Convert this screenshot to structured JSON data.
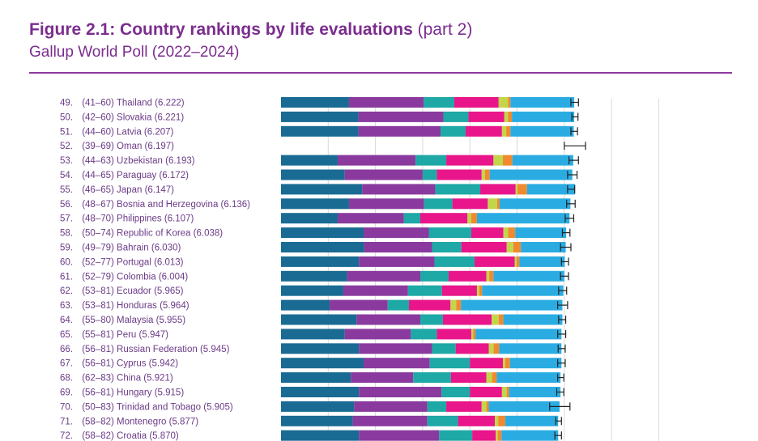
{
  "header": {
    "title": "Figure 2.1: Country rankings by life evaluations",
    "title_suffix": "(part 2)",
    "subtitle": "Gallup World Poll (2022–2024)"
  },
  "colors": {
    "title": "#7b2d8e",
    "rule": "#8e3a9e",
    "label": "#6b3b87",
    "segments": [
      "#1a6b93",
      "#8a3a9e",
      "#1ea8a6",
      "#e8168a",
      "#c3d64a",
      "#f08a2e",
      "#2aace2"
    ],
    "gridline": "#d8d8d8",
    "whisker": "#222222"
  },
  "chart_data": {
    "type": "bar",
    "orientation": "horizontal",
    "stacked": true,
    "xlim": [
      0,
      8.2
    ],
    "grid": true,
    "legend": "none",
    "rows": [
      {
        "rank": "49.",
        "range": "(41–60)",
        "country": "Thailand",
        "score": "(6.222)",
        "value": 6.222,
        "ci": [
          6.14,
          6.3
        ],
        "segments": [
          1.44,
          1.58,
          0.65,
          0.94,
          0.2,
          0.05,
          1.35
        ]
      },
      {
        "rank": "50.",
        "range": "(42–60)",
        "country": "Slovakia",
        "score": "(6.221)",
        "value": 6.221,
        "ci": [
          6.16,
          6.29
        ],
        "segments": [
          1.64,
          1.8,
          0.53,
          0.76,
          0.08,
          0.08,
          1.32
        ]
      },
      {
        "rank": "51.",
        "range": "(44–60)",
        "country": "Latvia",
        "score": "(6.207)",
        "value": 6.207,
        "ci": [
          6.14,
          6.28
        ],
        "segments": [
          1.64,
          1.74,
          0.53,
          0.77,
          0.09,
          0.09,
          1.34
        ]
      },
      {
        "rank": "52.",
        "range": "(39–69)",
        "country": "Oman",
        "score": "(6.197)",
        "value": 6.197,
        "ci": [
          6.0,
          6.45
        ],
        "segments": []
      },
      {
        "rank": "53.",
        "range": "(44–63)",
        "country": "Uzbekistan",
        "score": "(6.193)",
        "value": 6.193,
        "ci": [
          6.1,
          6.3
        ],
        "segments": [
          1.2,
          1.65,
          0.65,
          1.0,
          0.2,
          0.2,
          1.29
        ]
      },
      {
        "rank": "54.",
        "range": "(44–65)",
        "country": "Paraguay",
        "score": "(6.172)",
        "value": 6.172,
        "ci": [
          6.07,
          6.27
        ],
        "segments": [
          1.35,
          1.65,
          0.3,
          0.95,
          0.07,
          0.1,
          1.75
        ]
      },
      {
        "rank": "55.",
        "range": "(46–65)",
        "country": "Japan",
        "score": "(6.147)",
        "value": 6.147,
        "ci": [
          6.07,
          6.22
        ],
        "segments": [
          1.72,
          1.55,
          0.95,
          0.75,
          0.04,
          0.2,
          1.02
        ]
      },
      {
        "rank": "56.",
        "range": "(48–67)",
        "country": "Bosnia and Herzegovina",
        "score": "(6.136)",
        "value": 6.136,
        "ci": [
          6.05,
          6.23
        ],
        "segments": [
          1.44,
          1.59,
          0.6,
          0.75,
          0.2,
          0.05,
          1.5
        ]
      },
      {
        "rank": "57.",
        "range": "(48–70)",
        "country": "Philippines",
        "score": "(6.107)",
        "value": 6.107,
        "ci": [
          6.02,
          6.2
        ],
        "segments": [
          1.2,
          1.4,
          0.35,
          1.0,
          0.08,
          0.12,
          1.96
        ]
      },
      {
        "rank": "58.",
        "range": "(50–74)",
        "country": "Republic of Korea",
        "score": "(6.038)",
        "value": 6.038,
        "ci": [
          5.96,
          6.12
        ],
        "segments": [
          1.75,
          1.38,
          0.9,
          0.68,
          0.1,
          0.15,
          1.08
        ]
      },
      {
        "rank": "59.",
        "range": "(49–79)",
        "country": "Bahrain",
        "score": "(6.030)",
        "value": 6.03,
        "ci": [
          5.92,
          6.14
        ],
        "segments": [
          1.76,
          1.44,
          0.62,
          0.96,
          0.14,
          0.16,
          0.95
        ]
      },
      {
        "rank": "60.",
        "range": "(52–77)",
        "country": "Portugal",
        "score": "(6.013)",
        "value": 6.013,
        "ci": [
          5.94,
          6.09
        ],
        "segments": [
          1.65,
          1.6,
          0.85,
          0.85,
          0.04,
          0.06,
          0.96
        ]
      },
      {
        "rank": "61.",
        "range": "(52–79)",
        "country": "Colombia",
        "score": "(6.004)",
        "value": 6.004,
        "ci": [
          5.92,
          6.09
        ],
        "segments": [
          1.4,
          1.55,
          0.6,
          0.8,
          0.06,
          0.09,
          1.5
        ]
      },
      {
        "rank": "62.",
        "range": "(53–81)",
        "country": "Ecuador",
        "score": "(5.965)",
        "value": 5.965,
        "ci": [
          5.88,
          6.05
        ],
        "segments": [
          1.32,
          1.37,
          0.72,
          0.74,
          0.05,
          0.06,
          1.72
        ]
      },
      {
        "rank": "63.",
        "range": "(53–81)",
        "country": "Honduras",
        "score": "(5.964)",
        "value": 5.964,
        "ci": [
          5.86,
          6.07
        ],
        "segments": [
          1.03,
          1.23,
          0.45,
          0.88,
          0.12,
          0.1,
          2.15
        ]
      },
      {
        "rank": "64.",
        "range": "(55–80)",
        "country": "Malaysia",
        "score": "(5.955)",
        "value": 5.955,
        "ci": [
          5.88,
          6.03
        ],
        "segments": [
          1.6,
          1.35,
          0.48,
          1.03,
          0.15,
          0.1,
          1.25
        ]
      },
      {
        "rank": "65.",
        "range": "(55–81)",
        "country": "Peru",
        "score": "(5.947)",
        "value": 5.947,
        "ci": [
          5.86,
          6.03
        ],
        "segments": [
          1.35,
          1.4,
          0.55,
          0.73,
          0.04,
          0.05,
          1.82
        ]
      },
      {
        "rank": "66.",
        "range": "(56–81)",
        "country": "Russian Federation",
        "score": "(5.945)",
        "value": 5.945,
        "ci": [
          5.87,
          6.02
        ],
        "segments": [
          1.65,
          1.55,
          0.5,
          0.7,
          0.1,
          0.12,
          1.32
        ]
      },
      {
        "rank": "67.",
        "range": "(56–81)",
        "country": "Cyprus",
        "score": "(5.942)",
        "value": 5.942,
        "ci": [
          5.86,
          6.02
        ],
        "segments": [
          1.75,
          1.4,
          0.85,
          0.7,
          0.05,
          0.1,
          1.09
        ]
      },
      {
        "rank": "68.",
        "range": "(62–83)",
        "country": "China",
        "score": "(5.921)",
        "value": 5.921,
        "ci": [
          5.86,
          5.99
        ],
        "segments": [
          1.48,
          1.32,
          0.8,
          0.75,
          0.12,
          0.1,
          1.35
        ]
      },
      {
        "rank": "69.",
        "range": "(56–81)",
        "country": "Hungary",
        "score": "(5.915)",
        "value": 5.915,
        "ci": [
          5.84,
          5.99
        ],
        "segments": [
          1.65,
          1.75,
          0.6,
          0.68,
          0.1,
          0.05,
          1.09
        ]
      },
      {
        "rank": "70.",
        "range": "(50–83)",
        "country": "Trinidad and Tobago",
        "score": "(5.905)",
        "value": 5.905,
        "ci": [
          5.69,
          6.12
        ],
        "segments": [
          1.55,
          1.55,
          0.4,
          0.75,
          0.1,
          0.05,
          1.5
        ]
      },
      {
        "rank": "71.",
        "range": "(58–82)",
        "country": "Montenegro",
        "score": "(5.877)",
        "value": 5.877,
        "ci": [
          5.82,
          5.94
        ],
        "segments": [
          1.52,
          1.58,
          0.65,
          0.78,
          0.07,
          0.15,
          1.12
        ]
      },
      {
        "rank": "72.",
        "range": "(58–82)",
        "country": "Croatia",
        "score": "(5.870)",
        "value": 5.87,
        "ci": [
          5.8,
          5.94
        ],
        "segments": [
          1.65,
          1.7,
          0.7,
          0.5,
          0.04,
          0.08,
          1.2
        ]
      }
    ]
  }
}
